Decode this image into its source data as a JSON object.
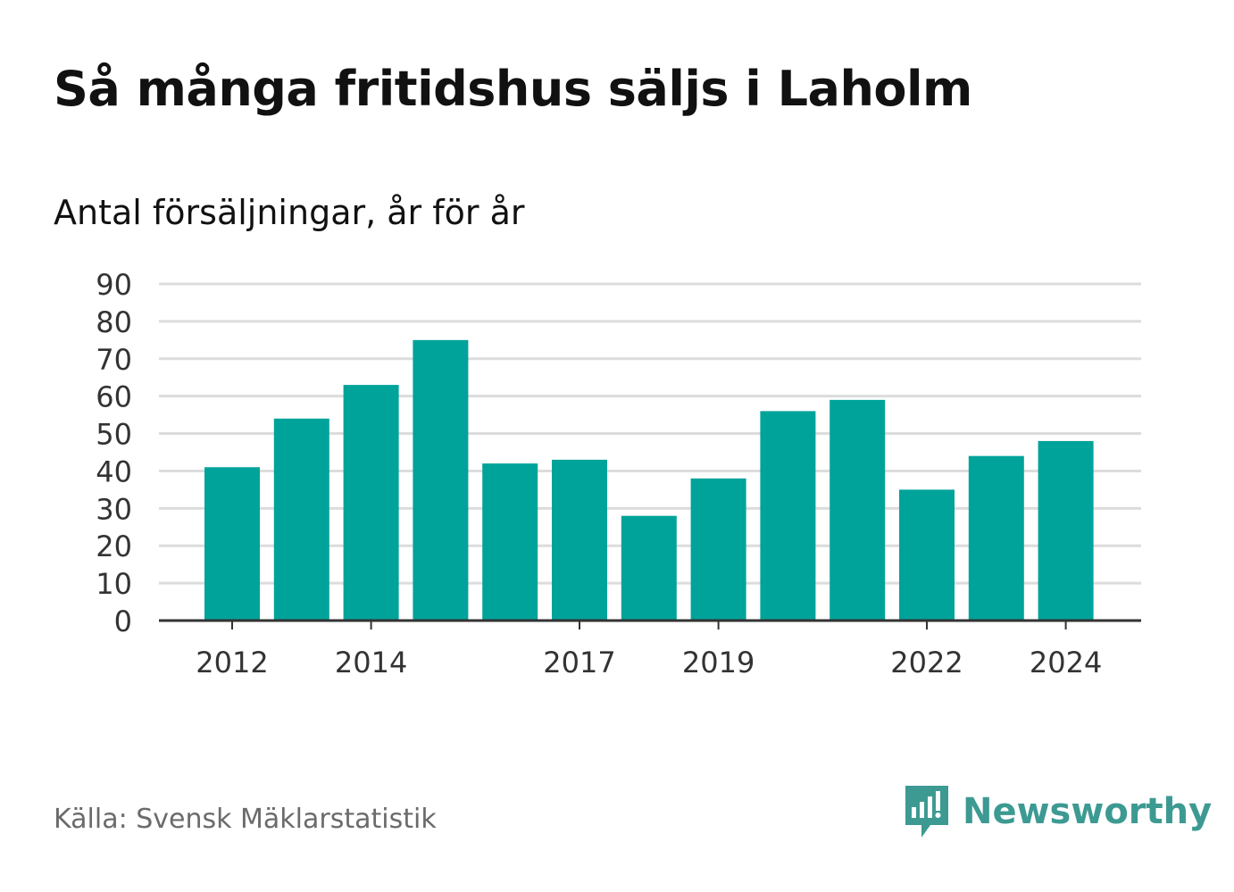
{
  "header": {
    "title": "Så många fritidshus säljs i Laholm",
    "subtitle": "Antal försäljningar, år för år"
  },
  "footer": {
    "source": "Källa: Svensk Mäklarstatistik",
    "brand": "Newsworthy",
    "brand_icon": "newsworthy-logo-icon"
  },
  "colors": {
    "bar": "#00a39a",
    "grid": "#dcdcdc",
    "axis": "#333333",
    "brand": "#3d9a92"
  },
  "chart_data": {
    "type": "bar",
    "categories": [
      "2012",
      "2013",
      "2014",
      "2015",
      "2016",
      "2017",
      "2018",
      "2019",
      "2020",
      "2021",
      "2022",
      "2023",
      "2024"
    ],
    "values": [
      41,
      54,
      63,
      75,
      42,
      43,
      28,
      38,
      56,
      59,
      35,
      44,
      48
    ],
    "x_tick_labels": [
      "2012",
      "2014",
      "2017",
      "2019",
      "2022",
      "2024"
    ],
    "y_ticks": [
      "0",
      "10",
      "20",
      "30",
      "40",
      "50",
      "60",
      "70",
      "80",
      "90"
    ],
    "ylim": [
      0,
      90
    ],
    "grid": true,
    "legend": "none"
  }
}
